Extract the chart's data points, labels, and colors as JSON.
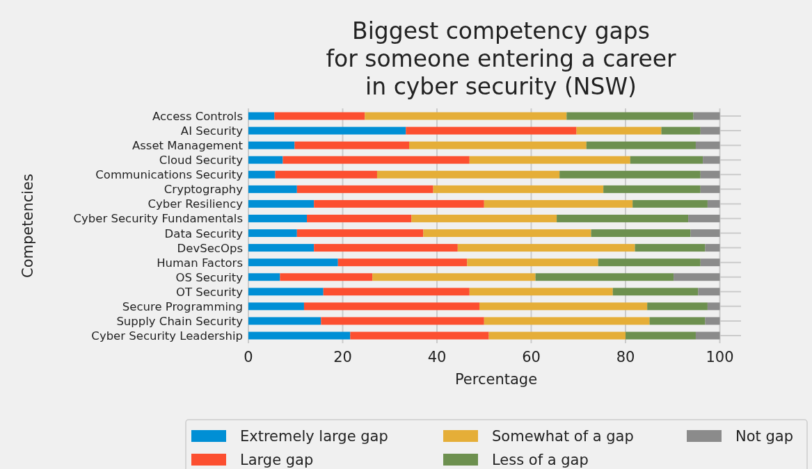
{
  "chart_data": {
    "type": "bar",
    "orientation": "horizontal",
    "stacked": true,
    "title": "Biggest competency gaps\nfor someone entering a career\nin cyber security (NSW)",
    "xlabel": "Percentage",
    "ylabel": "Competencies",
    "categories": [
      "Access Controls",
      "AI Security",
      "Asset Management",
      "Cloud Security",
      "Communications Security",
      "Cryptography",
      "Cyber Resiliency",
      "Cyber Security Fundamentals",
      "Data Security",
      "DevSecOps",
      "Human Factors",
      "OS Security",
      "OT Security",
      "Secure Programming",
      "Supply Chain Security",
      "Cyber Security Leadership"
    ],
    "series": [
      {
        "name": "Extremely large gap",
        "color": "#008fd5",
        "values": [
          5.5,
          33.4,
          9.8,
          7.3,
          5.7,
          10.3,
          13.9,
          12.4,
          10.3,
          13.9,
          19.0,
          6.7,
          15.9,
          11.8,
          15.4,
          21.6
        ]
      },
      {
        "name": "Large gap",
        "color": "#fc4f30",
        "values": [
          19.2,
          36.2,
          24.3,
          39.6,
          21.6,
          28.9,
          36.1,
          22.2,
          26.8,
          30.5,
          27.4,
          19.6,
          31.0,
          37.2,
          34.6,
          29.4
        ]
      },
      {
        "name": "Somewhat of a gap",
        "color": "#e5ae38",
        "values": [
          42.8,
          18.0,
          37.6,
          34.1,
          38.7,
          36.1,
          31.5,
          30.8,
          35.6,
          37.6,
          27.8,
          34.6,
          30.4,
          35.6,
          35.1,
          29.0
        ]
      },
      {
        "name": "Less of a gap",
        "color": "#6d904f",
        "values": [
          26.9,
          8.3,
          23.2,
          15.4,
          29.9,
          20.6,
          15.9,
          27.9,
          21.1,
          14.9,
          21.7,
          29.3,
          18.1,
          12.8,
          11.8,
          14.9
        ]
      },
      {
        "name": "Not gap",
        "color": "#8b8b8b",
        "values": [
          5.6,
          4.1,
          5.1,
          3.6,
          4.1,
          4.1,
          2.6,
          6.7,
          6.2,
          3.1,
          4.1,
          9.8,
          4.6,
          2.6,
          3.1,
          5.1
        ]
      }
    ],
    "xlim": [
      0,
      104.5
    ],
    "xticks": [
      0,
      20,
      40,
      60,
      80,
      100
    ],
    "grid": true,
    "legend": "bottom"
  }
}
